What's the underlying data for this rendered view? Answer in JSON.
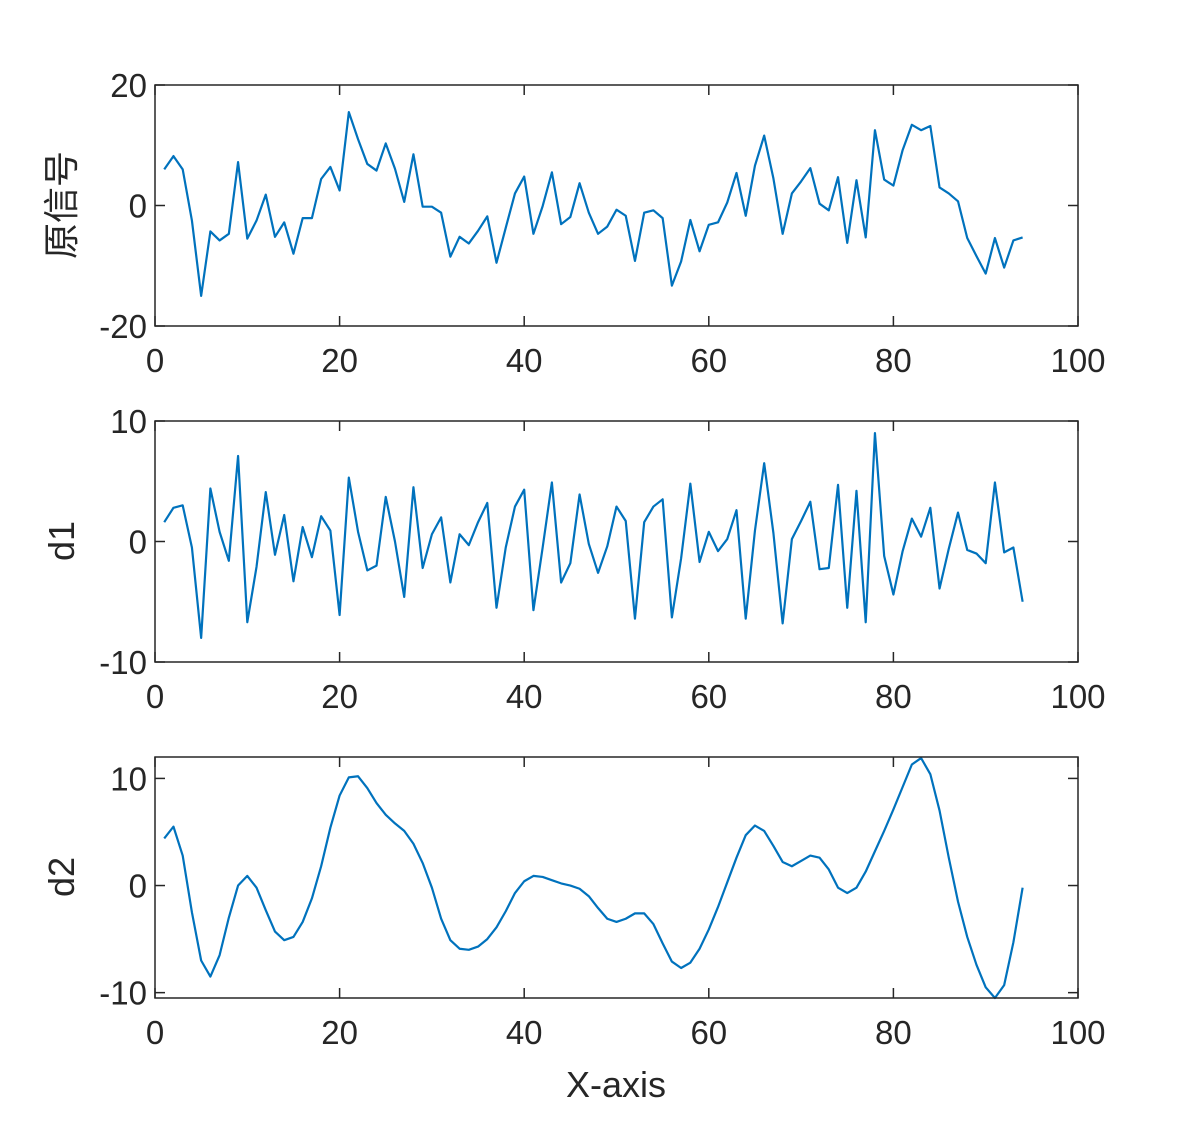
{
  "chart_data": [
    {
      "type": "line",
      "ylabel": "原信号",
      "xlim": [
        0,
        100
      ],
      "ylim": [
        -20,
        20
      ],
      "xticks": [
        0,
        20,
        40,
        60,
        80,
        100
      ],
      "yticks": [
        -20,
        0,
        20
      ],
      "series": [
        {
          "color": "#0072BD",
          "x": [
            1,
            2,
            3,
            4,
            5,
            6,
            7,
            8,
            9,
            10,
            11,
            12,
            13,
            14,
            15,
            16,
            17,
            18,
            19,
            20,
            21,
            22,
            23,
            24,
            25,
            26,
            27,
            28,
            29,
            30,
            31,
            32,
            33,
            34,
            35,
            36,
            37,
            38,
            39,
            40,
            41,
            42,
            43,
            44,
            45,
            46,
            47,
            48,
            49,
            50,
            51,
            52,
            53,
            54,
            55,
            56,
            57,
            58,
            59,
            60,
            61,
            62,
            63,
            64,
            65,
            66,
            67,
            68,
            69,
            70,
            71,
            72,
            73,
            74,
            75,
            76,
            77,
            78,
            79,
            80,
            81,
            82,
            83,
            84,
            85,
            86,
            87,
            88,
            89,
            90,
            91,
            92,
            93,
            94
          ],
          "values": [
            6,
            8.2,
            6,
            -2.5,
            -15,
            -4.3,
            -5.8,
            -4.7,
            7.2,
            -5.5,
            -2.5,
            1.8,
            -5.2,
            -2.8,
            -8,
            -2.1,
            -2.1,
            4.4,
            6.4,
            2.5,
            15.5,
            11,
            6.9,
            5.8,
            10.3,
            6.1,
            0.6,
            8.5,
            -0.2,
            -0.2,
            -1.2,
            -8.5,
            -5.2,
            -6.3,
            -4.2,
            -1.8,
            -9.5,
            -3.7,
            2,
            4.8,
            -4.7,
            -0.1,
            5.5,
            -3.1,
            -1.9,
            3.7,
            -1.2,
            -4.7,
            -3.5,
            -0.7,
            -1.7,
            -9.2,
            -1.2,
            -0.8,
            -2.1,
            -13.3,
            -9.3,
            -2.4,
            -7.6,
            -3.2,
            -2.8,
            0.5,
            5.4,
            -1.7,
            6.6,
            11.6,
            4.5,
            -4.7,
            2,
            4,
            6.2,
            0.3,
            -0.8,
            4.7,
            -6.2,
            4.2,
            -5.3,
            12.5,
            4.3,
            3.3,
            9.2,
            13.4,
            12.5,
            13.2,
            3,
            2,
            0.7,
            -5.4,
            -8.4,
            -11.3,
            -5.4,
            -10.3,
            -5.8,
            -5.3
          ]
        }
      ]
    },
    {
      "type": "line",
      "ylabel": "d1",
      "xlim": [
        0,
        100
      ],
      "ylim": [
        -10,
        10
      ],
      "xticks": [
        0,
        20,
        40,
        60,
        80,
        100
      ],
      "yticks": [
        -10,
        0,
        10
      ],
      "series": [
        {
          "color": "#0072BD",
          "x": [
            1,
            2,
            3,
            4,
            5,
            6,
            7,
            8,
            9,
            10,
            11,
            12,
            13,
            14,
            15,
            16,
            17,
            18,
            19,
            20,
            21,
            22,
            23,
            24,
            25,
            26,
            27,
            28,
            29,
            30,
            31,
            32,
            33,
            34,
            35,
            36,
            37,
            38,
            39,
            40,
            41,
            42,
            43,
            44,
            45,
            46,
            47,
            48,
            49,
            50,
            51,
            52,
            53,
            54,
            55,
            56,
            57,
            58,
            59,
            60,
            61,
            62,
            63,
            64,
            65,
            66,
            67,
            68,
            69,
            70,
            71,
            72,
            73,
            74,
            75,
            76,
            77,
            78,
            79,
            80,
            81,
            82,
            83,
            84,
            85,
            86,
            87,
            88,
            89,
            90,
            91,
            92,
            93,
            94
          ],
          "values": [
            1.6,
            2.8,
            3,
            -0.5,
            -8,
            4.4,
            0.8,
            -1.6,
            7.1,
            -6.7,
            -2.1,
            4.1,
            -1.1,
            2.2,
            -3.3,
            1.2,
            -1.3,
            2.1,
            0.9,
            -6.1,
            5.3,
            0.8,
            -2.4,
            -2,
            3.7,
            0,
            -4.6,
            4.5,
            -2.2,
            0.6,
            2,
            -3.4,
            0.6,
            -0.3,
            1.6,
            3.2,
            -5.5,
            -0.5,
            2.9,
            4.3,
            -5.7,
            -0.5,
            4.9,
            -3.4,
            -1.8,
            3.9,
            -0.2,
            -2.6,
            -0.4,
            2.9,
            1.7,
            -6.4,
            1.6,
            2.9,
            3.5,
            -6.3,
            -1.4,
            4.8,
            -1.7,
            0.8,
            -0.8,
            0.2,
            2.6,
            -6.4,
            0.9,
            6.5,
            0.7,
            -6.8,
            0.2,
            1.7,
            3.3,
            -2.3,
            -2.2,
            4.7,
            -5.5,
            4.2,
            -6.7,
            9,
            -1.2,
            -4.4,
            -0.8,
            1.9,
            0.4,
            2.8,
            -3.9,
            -0.6,
            2.4,
            -0.7,
            -1,
            -1.8,
            4.9,
            -0.9,
            -0.5,
            -5
          ]
        }
      ]
    },
    {
      "type": "line",
      "ylabel": "d2",
      "xlabel": "X-axis",
      "xlim": [
        0,
        100
      ],
      "ylim": [
        -10.5,
        12
      ],
      "xticks": [
        0,
        20,
        40,
        60,
        80,
        100
      ],
      "yticks": [
        -10,
        0,
        10
      ],
      "series": [
        {
          "color": "#0072BD",
          "x": [
            1,
            2,
            3,
            4,
            5,
            6,
            7,
            8,
            9,
            10,
            11,
            12,
            13,
            14,
            15,
            16,
            17,
            18,
            19,
            20,
            21,
            22,
            23,
            24,
            25,
            26,
            27,
            28,
            29,
            30,
            31,
            32,
            33,
            34,
            35,
            36,
            37,
            38,
            39,
            40,
            41,
            42,
            43,
            44,
            45,
            46,
            47,
            48,
            49,
            50,
            51,
            52,
            53,
            54,
            55,
            56,
            57,
            58,
            59,
            60,
            61,
            62,
            63,
            64,
            65,
            66,
            67,
            68,
            69,
            70,
            71,
            72,
            73,
            74,
            75,
            76,
            77,
            78,
            79,
            80,
            81,
            82,
            83,
            84,
            85,
            86,
            87,
            88,
            89,
            90,
            91,
            92,
            93,
            94
          ],
          "values": [
            4.4,
            5.5,
            2.8,
            -2.5,
            -7,
            -8.5,
            -6.5,
            -3,
            0,
            0.9,
            -0.2,
            -2.3,
            -4.3,
            -5.1,
            -4.8,
            -3.4,
            -1.2,
            1.8,
            5.4,
            8.4,
            10.1,
            10.2,
            9.1,
            7.7,
            6.6,
            5.8,
            5.1,
            3.9,
            2.1,
            -0.2,
            -3.1,
            -5.1,
            -5.9,
            -6,
            -5.7,
            -5,
            -3.9,
            -2.4,
            -0.7,
            0.4,
            0.9,
            0.8,
            0.5,
            0.2,
            0,
            -0.3,
            -1,
            -2.1,
            -3.1,
            -3.4,
            -3.1,
            -2.6,
            -2.6,
            -3.6,
            -5.4,
            -7.1,
            -7.7,
            -7.2,
            -5.9,
            -4.1,
            -2,
            0.3,
            2.6,
            4.7,
            5.6,
            5.1,
            3.7,
            2.2,
            1.8,
            2.3,
            2.8,
            2.6,
            1.5,
            -0.2,
            -0.7,
            -0.2,
            1.3,
            3.2,
            5.1,
            7.1,
            9.2,
            11.3,
            11.9,
            10.4,
            7,
            2.6,
            -1.5,
            -4.8,
            -7.4,
            -9.5,
            -10.5,
            -9.3,
            -5.3,
            -0.2
          ]
        }
      ]
    }
  ]
}
